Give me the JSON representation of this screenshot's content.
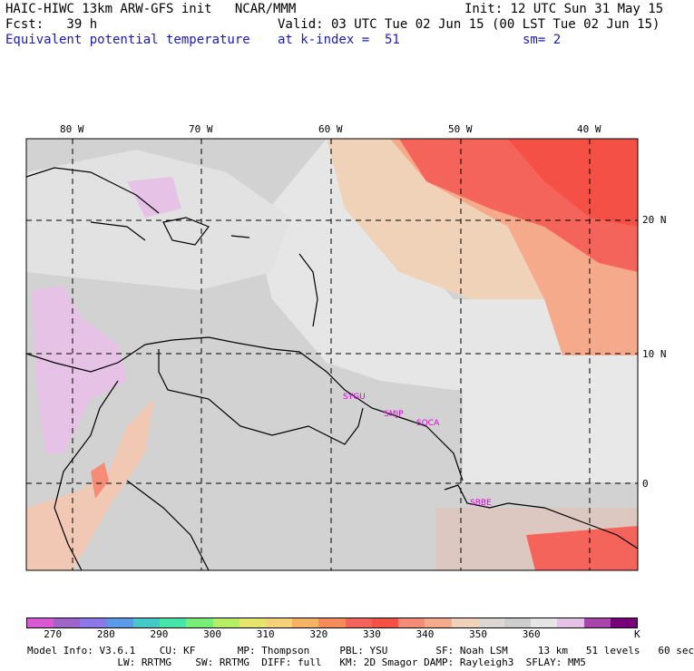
{
  "header": {
    "line1_left": "HAIC-HIWC 13km ARW-GFS init   NCAR/MMM",
    "line1_right": "Init: 12 UTC Sun 31 May 15",
    "line2_left": "Fcst:   39 h",
    "line2_right": "Valid: 03 UTC Tue 02 Jun 15 (00 LST Tue 02 Jun 15)",
    "line3_left": "Equivalent potential temperature",
    "line3_mid": "at k-index =  51",
    "line3_right": "sm= 2"
  },
  "map": {
    "lon_labels": [
      "80 W",
      "70 W",
      "60 W",
      "50 W",
      "40 W"
    ],
    "lat_labels": [
      "20 N",
      "10 N",
      "0"
    ],
    "stations": [
      "SYGU",
      "SMJP",
      "SOCA",
      "SBBE"
    ]
  },
  "colorbar": {
    "colors": [
      "#d75ad2",
      "#a064c8",
      "#8c78e6",
      "#5a9ae6",
      "#46c8c8",
      "#46e6aa",
      "#78ee78",
      "#b4ee64",
      "#e6e66e",
      "#f5d278",
      "#f5b464",
      "#f58c5a",
      "#f5645a",
      "#f55046",
      "#f58c78",
      "#f5aa8c",
      "#f0d2b9",
      "#dcd7d2",
      "#cdcdcd",
      "#e6e6e6",
      "#e6c3e6",
      "#aa46aa",
      "#780078"
    ],
    "ticks": [
      "270",
      "280",
      "290",
      "300",
      "310",
      "320",
      "330",
      "340",
      "350",
      "360"
    ],
    "unit": "K"
  },
  "footer": {
    "line1": "Model Info: V3.6.1    CU: KF       MP: Thompson     PBL: YSU        SF: Noah LSM     13 km   51 levels   60 sec",
    "line2": "               LW: RRTMG    SW: RRTMG  DIFF: full   KM: 2D Smagor DAMP: Rayleigh3  SFLAY: MM5"
  }
}
